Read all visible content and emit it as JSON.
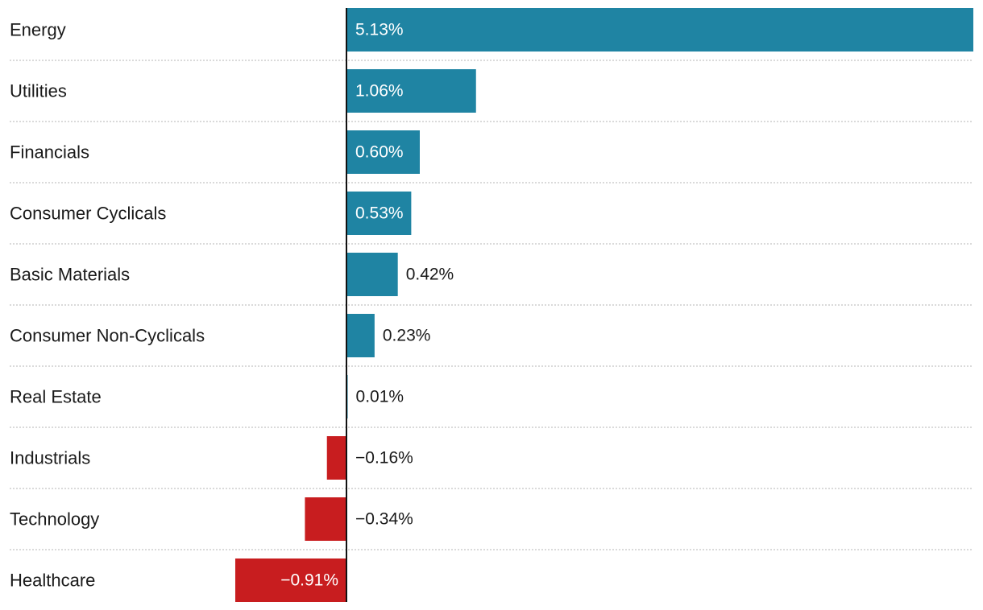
{
  "chart_data": {
    "type": "bar",
    "orientation": "horizontal",
    "categories": [
      "Energy",
      "Utilities",
      "Financials",
      "Consumer Cyclicals",
      "Basic Materials",
      "Consumer Non-Cyclicals",
      "Real Estate",
      "Industrials",
      "Technology",
      "Healthcare"
    ],
    "values": [
      5.13,
      1.06,
      0.6,
      0.53,
      0.42,
      0.23,
      0.01,
      -0.16,
      -0.34,
      -0.91
    ],
    "value_labels": [
      "5.13%",
      "1.06%",
      "0.60%",
      "0.53%",
      "0.42%",
      "0.23%",
      "0.01%",
      "−0.16%",
      "−0.34%",
      "−0.91%"
    ],
    "unit": "%",
    "xlim": [
      -0.91,
      5.13
    ],
    "grid": "dotted row separators",
    "legend": "none",
    "colors": {
      "positive": "#1f84a3",
      "negative": "#c81d1f",
      "zero_line": "#111111",
      "label_inside": "#ffffff",
      "label_outside": "#1a1a1a"
    }
  }
}
